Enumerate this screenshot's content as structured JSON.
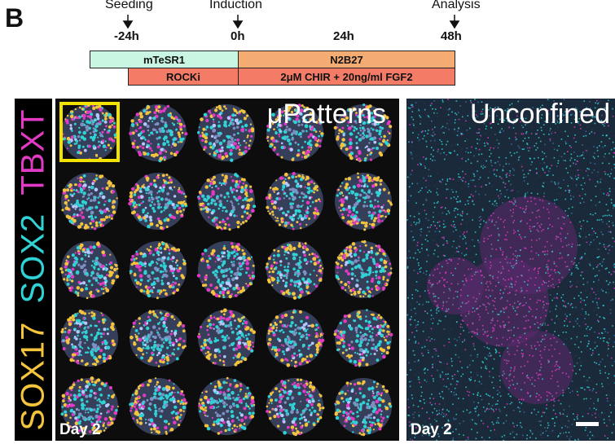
{
  "panel_letter": "B",
  "timeline": {
    "events": [
      "Seeding",
      "Induction",
      "Analysis"
    ],
    "ticks": [
      "-24h",
      "0h",
      "24h",
      "48h"
    ],
    "bars": {
      "mtesr1": "mTeSR1",
      "n2b27": "N2B27",
      "rocki": "ROCKi",
      "chir": "2μM CHIR  + 20ng/ml FGF2"
    },
    "colors": {
      "mint": "#c9f5e3",
      "orange": "#f5ac73",
      "salmon": "#f47c66"
    }
  },
  "stains": {
    "sox17": "SOX17",
    "sox2": "SOX2",
    "tbxt": "TBXT",
    "colors": {
      "sox17": "#f5c43d",
      "sox2": "#2fd3d6",
      "tbxt": "#e23ac4"
    }
  },
  "patterns_panel": {
    "title": "μPatterns",
    "day": "Day 2",
    "rows": 5,
    "cols": 5,
    "highlight_color": "#f2e200"
  },
  "unconfined_panel": {
    "title": "Unconfined",
    "day": "Day 2"
  }
}
